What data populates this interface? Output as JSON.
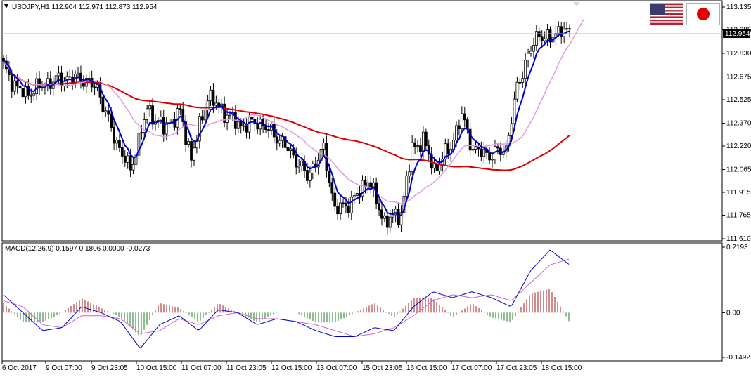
{
  "window": {
    "symbol_line": "USDJPY,H1  112.904 112.971 112.873 112.954",
    "macd_line": "MACD(12,26,9) 0.1597 0.1806 0.0000 -0.0273"
  },
  "flags": [
    {
      "name": "us-flag-icon"
    },
    {
      "name": "japan-flag-icon"
    }
  ],
  "colors": {
    "bullish": "#000000",
    "bearish": "#000000",
    "fast_ma": "#0000cc",
    "mid_ma": "#e29ae2",
    "slow_ma": "#dd0000",
    "macd_main": "#0000cc",
    "macd_signal": "#cc66cc",
    "hist_pos": "#a01818",
    "hist_neg": "#1d7a1d",
    "bid_line": "#b4b4b4",
    "price_tag_bg": "#000000",
    "price_tag_text": "#ffffff"
  },
  "chart_data": [
    {
      "type": "candlestick",
      "title": "USDJPY,H1  112.904 112.971 112.873 112.954",
      "ylim": [
        111.56,
        113.16
      ],
      "y_ticks": [
        "113.135",
        "112.985",
        "112.830",
        "112.675",
        "112.525",
        "112.370",
        "112.220",
        "112.065",
        "111.915",
        "111.765",
        "111.610"
      ],
      "x_ticks": [
        "6 Oct 2017",
        "9 Oct 07:00",
        "9 Oct 23:05",
        "10 Oct 15:00",
        "11 Oct 07:00",
        "11 Oct 23:05",
        "12 Oct 15:00",
        "13 Oct 07:00",
        "15 Oct 23:05",
        "16 Oct 15:00",
        "17 Oct 07:00",
        "17 Oct 23:05",
        "18 Oct 15:00"
      ],
      "current_price": "112.954",
      "waypoints": [
        {
          "i": 0,
          "p": 112.74
        },
        {
          "i": 4,
          "p": 112.62
        },
        {
          "i": 8,
          "p": 112.56
        },
        {
          "i": 14,
          "p": 112.62
        },
        {
          "i": 20,
          "p": 112.66
        },
        {
          "i": 28,
          "p": 112.67
        },
        {
          "i": 34,
          "p": 112.6
        },
        {
          "i": 40,
          "p": 112.28
        },
        {
          "i": 46,
          "p": 112.06
        },
        {
          "i": 52,
          "p": 112.46
        },
        {
          "i": 58,
          "p": 112.34
        },
        {
          "i": 64,
          "p": 112.44
        },
        {
          "i": 68,
          "p": 112.14
        },
        {
          "i": 74,
          "p": 112.55
        },
        {
          "i": 80,
          "p": 112.44
        },
        {
          "i": 86,
          "p": 112.35
        },
        {
          "i": 92,
          "p": 112.38
        },
        {
          "i": 98,
          "p": 112.3
        },
        {
          "i": 104,
          "p": 112.18
        },
        {
          "i": 110,
          "p": 112.02
        },
        {
          "i": 116,
          "p": 112.2
        },
        {
          "i": 120,
          "p": 111.8
        },
        {
          "i": 126,
          "p": 111.85
        },
        {
          "i": 132,
          "p": 112.0
        },
        {
          "i": 138,
          "p": 111.72
        },
        {
          "i": 144,
          "p": 111.78
        },
        {
          "i": 148,
          "p": 112.2
        },
        {
          "i": 152,
          "p": 112.26
        },
        {
          "i": 156,
          "p": 112.06
        },
        {
          "i": 162,
          "p": 112.22
        },
        {
          "i": 166,
          "p": 112.42
        },
        {
          "i": 170,
          "p": 112.2
        },
        {
          "i": 176,
          "p": 112.16
        },
        {
          "i": 182,
          "p": 112.2
        },
        {
          "i": 186,
          "p": 112.6
        },
        {
          "i": 190,
          "p": 112.82
        },
        {
          "i": 194,
          "p": 112.96
        },
        {
          "i": 198,
          "p": 112.92
        },
        {
          "i": 202,
          "p": 113.0
        },
        {
          "i": 205,
          "p": 112.95
        }
      ],
      "moving_averages": [
        {
          "name": "fast",
          "color_key": "fast_ma"
        },
        {
          "name": "mid",
          "color_key": "mid_ma"
        },
        {
          "name": "slow",
          "color_key": "slow_ma"
        }
      ]
    },
    {
      "type": "line",
      "title": "MACD(12,26,9) 0.1597 0.1806 0.0000 -0.0273",
      "ylim": [
        -0.1492,
        0.2193
      ],
      "y_ticks": [
        "0.2193",
        "0.00",
        "-0.1492"
      ],
      "series": [
        {
          "name": "MACD",
          "values": [
            0.06,
            0.0,
            -0.06,
            -0.05,
            0.02,
            0.0,
            -0.03,
            -0.12,
            -0.04,
            -0.01,
            -0.06,
            0.01,
            0.0,
            -0.04,
            -0.02,
            -0.03,
            -0.06,
            -0.08,
            -0.08,
            -0.05,
            -0.06,
            0.02,
            0.07,
            0.05,
            0.07,
            0.05,
            0.02,
            0.14,
            0.21,
            0.16
          ]
        },
        {
          "name": "Signal",
          "values": [
            0.04,
            0.02,
            -0.04,
            -0.05,
            -0.01,
            -0.01,
            -0.02,
            -0.07,
            -0.06,
            -0.02,
            -0.04,
            -0.01,
            0.0,
            -0.02,
            -0.02,
            -0.03,
            -0.04,
            -0.06,
            -0.08,
            -0.07,
            -0.05,
            -0.01,
            0.04,
            0.06,
            0.05,
            0.06,
            0.04,
            0.1,
            0.16,
            0.18
          ]
        }
      ]
    }
  ]
}
